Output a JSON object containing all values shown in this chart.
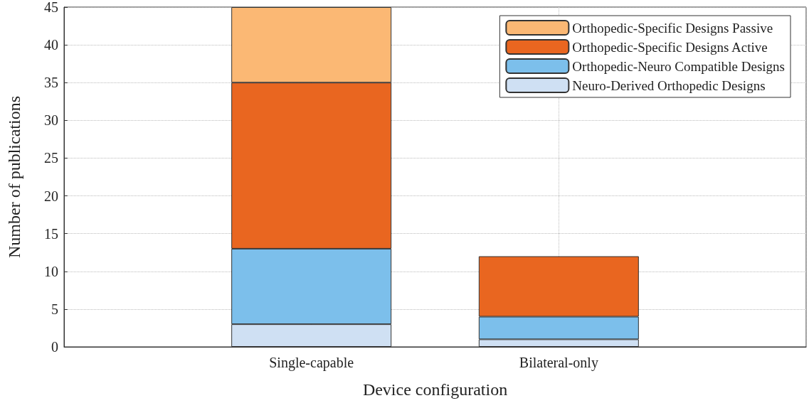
{
  "chart_data": {
    "type": "bar",
    "stacked": true,
    "xlabel": "Device configuration",
    "ylabel": "Number of publications",
    "categories": [
      null,
      "Single-capable",
      "Bilateral-only",
      null
    ],
    "series": [
      {
        "name": "Neuro-Derived Orthopedic Designs",
        "color": "#cfe0f3",
        "values": [
          null,
          3,
          1,
          null
        ]
      },
      {
        "name": "Orthopedic-Neuro Compatible Designs",
        "color": "#7cbfeb",
        "values": [
          null,
          10,
          3,
          null
        ]
      },
      {
        "name": "Orthopedic-Specific Designs Active",
        "color": "#e96620",
        "values": [
          null,
          22,
          8,
          null
        ]
      },
      {
        "name": "Orthopedic-Specific Designs Passive",
        "color": "#fbb874",
        "values": [
          null,
          10,
          null,
          null
        ]
      }
    ],
    "ylim": [
      0,
      45
    ],
    "yticks": [
      0,
      5,
      10,
      15,
      20,
      25,
      30,
      35,
      40,
      45
    ],
    "grid": true,
    "legend": "top right"
  }
}
